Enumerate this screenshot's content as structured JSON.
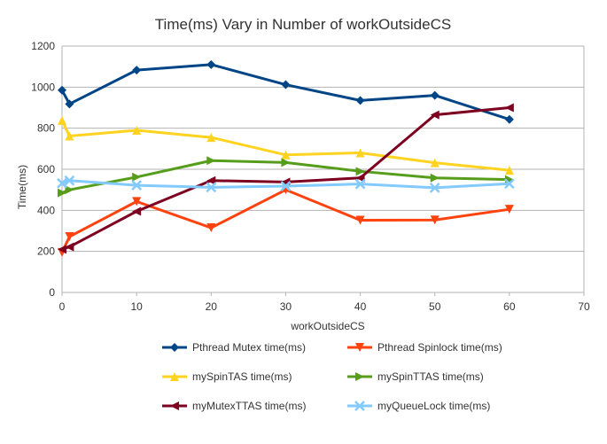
{
  "chart_data": {
    "type": "line",
    "title": "Time(ms) Vary in Number of workOutsideCS",
    "xlabel": "workOutsideCS",
    "ylabel": "Time(ms)",
    "xlim": [
      0,
      70
    ],
    "ylim": [
      0,
      1200
    ],
    "x_ticks": [
      "0",
      "10",
      "20",
      "30",
      "40",
      "50",
      "60",
      "70"
    ],
    "y_ticks": [
      "0",
      "200",
      "400",
      "600",
      "800",
      "1000",
      "1200"
    ],
    "grid": "horizontal",
    "legend_position": "bottom",
    "x": [
      0,
      1,
      10,
      20,
      30,
      40,
      50,
      60
    ],
    "series": [
      {
        "name": "Pthread Mutex time(ms)",
        "color": "#004586",
        "marker": "diamond",
        "values": [
          985,
          918,
          1083,
          1110,
          1012,
          935,
          960,
          843
        ]
      },
      {
        "name": "Pthread Spinlock time(ms)",
        "color": "#ff420e",
        "marker": "triangle-down",
        "values": [
          195,
          272,
          443,
          315,
          500,
          352,
          353,
          405
        ]
      },
      {
        "name": "mySpinTAS time(ms)",
        "color": "#ffd320",
        "marker": "triangle-up",
        "values": [
          838,
          762,
          790,
          755,
          670,
          680,
          632,
          595
        ]
      },
      {
        "name": "mySpinTTAS time(ms)",
        "color": "#579d1c",
        "marker": "triangle-right",
        "values": [
          485,
          500,
          562,
          642,
          633,
          590,
          558,
          550
        ]
      },
      {
        "name": "myMutexTTAS time(ms)",
        "color": "#7e0021",
        "marker": "triangle-left",
        "values": [
          210,
          222,
          395,
          545,
          538,
          558,
          865,
          900
        ]
      },
      {
        "name": "myQueueLock time(ms)",
        "color": "#83caff",
        "marker": "cross",
        "values": [
          532,
          545,
          522,
          512,
          518,
          528,
          510,
          530
        ]
      }
    ]
  }
}
